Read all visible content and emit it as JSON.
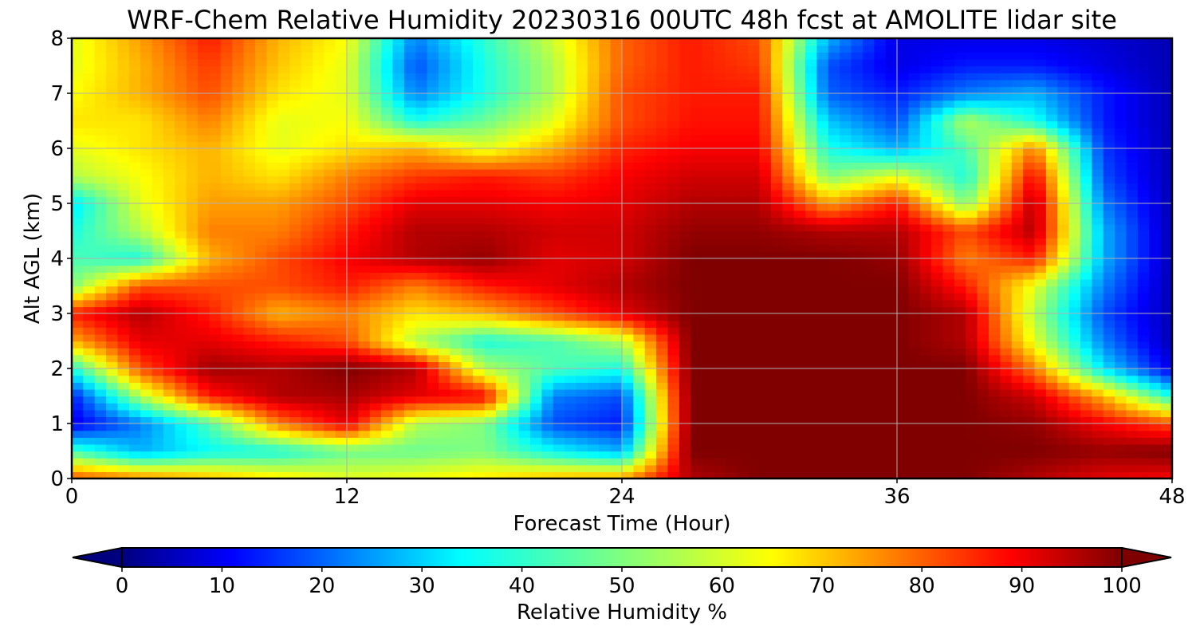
{
  "chart_data": {
    "type": "heatmap",
    "title": "WRF-Chem Relative Humidity 20230316 00UTC 48h fcst at AMOLITE lidar site",
    "xlabel": "Forecast Time (Hour)",
    "ylabel": "Alt AGL (km)",
    "xlim": [
      0,
      48
    ],
    "ylim": [
      0,
      8
    ],
    "x_ticks": [
      "0",
      "12",
      "24",
      "36",
      "48"
    ],
    "y_ticks": [
      "0",
      "1",
      "2",
      "3",
      "4",
      "5",
      "6",
      "7",
      "8"
    ],
    "grid": true,
    "colorbar": {
      "label": "Relative Humidity %",
      "range": [
        0,
        100
      ],
      "extend": "both",
      "colormap": "jet",
      "ticks": [
        "0",
        "10",
        "20",
        "30",
        "40",
        "50",
        "60",
        "70",
        "80",
        "90",
        "100"
      ]
    },
    "x": [
      0,
      3,
      6,
      9,
      12,
      15,
      18,
      21,
      24,
      27,
      30,
      33,
      36,
      39,
      42,
      45,
      48
    ],
    "y": [
      0,
      0.5,
      1,
      1.5,
      2,
      2.5,
      3,
      3.5,
      4,
      4.5,
      5,
      5.5,
      6,
      6.5,
      7,
      7.5,
      8
    ],
    "z": [
      [
        80,
        75,
        70,
        65,
        60,
        62,
        65,
        70,
        72,
        95,
        100,
        100,
        100,
        100,
        95,
        90,
        88
      ],
      [
        45,
        30,
        38,
        40,
        48,
        48,
        50,
        38,
        30,
        100,
        100,
        100,
        100,
        100,
        100,
        98,
        100
      ],
      [
        10,
        25,
        45,
        75,
        90,
        55,
        50,
        20,
        15,
        100,
        100,
        100,
        100,
        100,
        98,
        88,
        80
      ],
      [
        15,
        55,
        85,
        95,
        96,
        90,
        88,
        25,
        20,
        100,
        100,
        100,
        100,
        100,
        92,
        70,
        40
      ],
      [
        40,
        80,
        97,
        95,
        100,
        95,
        55,
        45,
        40,
        100,
        100,
        100,
        100,
        100,
        75,
        35,
        10
      ],
      [
        70,
        90,
        90,
        85,
        80,
        55,
        40,
        45,
        55,
        100,
        100,
        100,
        100,
        95,
        60,
        25,
        5
      ],
      [
        85,
        95,
        85,
        70,
        75,
        65,
        70,
        80,
        90,
        100,
        100,
        100,
        100,
        95,
        55,
        20,
        5
      ],
      [
        50,
        80,
        80,
        80,
        85,
        75,
        85,
        90,
        95,
        100,
        100,
        100,
        100,
        85,
        60,
        25,
        5
      ],
      [
        45,
        40,
        70,
        80,
        88,
        95,
        98,
        90,
        92,
        100,
        100,
        100,
        98,
        75,
        85,
        30,
        5
      ],
      [
        40,
        55,
        75,
        75,
        85,
        95,
        95,
        92,
        92,
        98,
        98,
        95,
        95,
        80,
        95,
        30,
        5
      ],
      [
        35,
        60,
        72,
        72,
        80,
        90,
        90,
        88,
        90,
        95,
        95,
        72,
        85,
        50,
        95,
        25,
        5
      ],
      [
        55,
        62,
        70,
        65,
        75,
        82,
        85,
        82,
        88,
        92,
        92,
        50,
        60,
        40,
        88,
        20,
        5
      ],
      [
        60,
        65,
        70,
        60,
        65,
        70,
        60,
        70,
        84,
        88,
        88,
        40,
        30,
        45,
        75,
        18,
        5
      ],
      [
        65,
        65,
        75,
        60,
        62,
        40,
        48,
        60,
        80,
        86,
        86,
        32,
        20,
        55,
        40,
        15,
        5
      ],
      [
        62,
        70,
        80,
        65,
        60,
        25,
        40,
        55,
        80,
        85,
        85,
        22,
        15,
        25,
        30,
        15,
        5
      ],
      [
        60,
        70,
        82,
        68,
        60,
        20,
        40,
        55,
        78,
        85,
        82,
        20,
        10,
        15,
        15,
        10,
        5
      ],
      [
        60,
        72,
        85,
        70,
        62,
        25,
        42,
        58,
        78,
        85,
        80,
        30,
        10,
        10,
        10,
        8,
        5
      ]
    ]
  }
}
